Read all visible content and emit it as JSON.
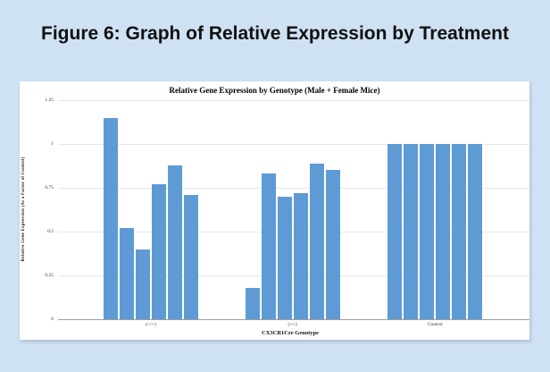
{
  "page": {
    "figure_title": "Figure 6: Graph of Relative Expression by Treatment"
  },
  "colors": {
    "slide_background": "#cfe2f3",
    "panel_background": "#ffffff",
    "bar_fill": "#5e9bd5",
    "gridline": "#e7e7e7",
    "axis_line": "#9e9e9e",
    "title_text": "#111111"
  },
  "chart_data": {
    "type": "bar",
    "title": "Relative Gene Expression by Genotype (Male + Female Mice)",
    "xlabel": "CX3CR1Cre Genotype",
    "ylabel": "Relative Gene Expression (As a Factor of Control)",
    "ylim": [
      0,
      1.25
    ],
    "yticks": [
      0,
      0.25,
      0.5,
      0.75,
      1,
      1.25
    ],
    "ytick_labels": [
      "0",
      "0.25",
      "0.5",
      "0.75",
      "1",
      "1.25"
    ],
    "grid": true,
    "legend": "none",
    "categories": [
      "(+/+)",
      "(+/-)",
      "Control"
    ],
    "groups": [
      {
        "label": "(+/+)",
        "values": [
          1.15,
          0.52,
          0.4,
          0.77,
          0.88,
          0.71
        ]
      },
      {
        "label": "(+/-)",
        "values": [
          0.18,
          0.83,
          0.7,
          0.72,
          0.89,
          0.85
        ]
      },
      {
        "label": "Control",
        "values": [
          1.0,
          1.0,
          1.0,
          1.0,
          1.0,
          1.0
        ]
      }
    ]
  }
}
